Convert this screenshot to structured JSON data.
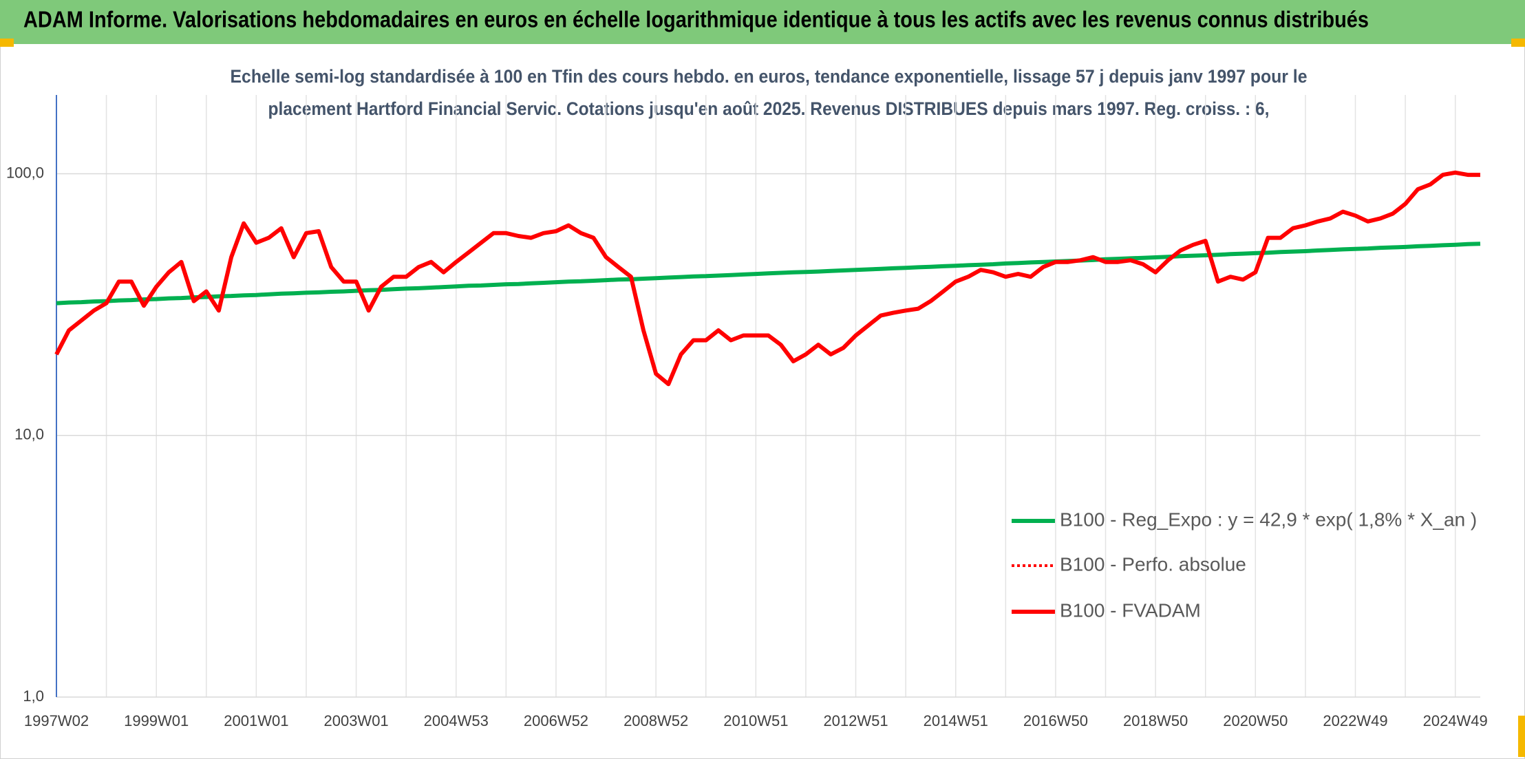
{
  "header": {
    "title": "ADAM Informe. Valorisations hebdomadaires en euros en échelle logarithmique identique à tous les actifs avec les revenus connus distribués"
  },
  "chart_data": {
    "type": "line",
    "title_lines": [
      "Echelle semi-log standardisée à 100 en Tfin des cours hebdo. en euros, tendance exponentielle, lissage 57 j depuis janv 1997 pour le",
      "placement Hartford Financial Servic. Cotations jusqu'en août 2025. Revenus DISTRIBUES depuis mars 1997. Reg. croiss. : 6,"
    ],
    "log_scale": true,
    "grid": true,
    "ylim": [
      1,
      200
    ],
    "yticks": [
      {
        "value": 1,
        "label": "1,0"
      },
      {
        "value": 10,
        "label": "10,0"
      },
      {
        "value": 100,
        "label": "100,0"
      }
    ],
    "categories": [
      "1997W02",
      null,
      null,
      null,
      null,
      null,
      null,
      null,
      "1999W01",
      null,
      null,
      null,
      null,
      null,
      null,
      null,
      "2001W01",
      null,
      null,
      null,
      null,
      null,
      null,
      null,
      "2003W01",
      null,
      null,
      null,
      null,
      null,
      null,
      null,
      "2004W53",
      null,
      null,
      null,
      null,
      null,
      null,
      null,
      "2006W52",
      null,
      null,
      null,
      null,
      null,
      null,
      null,
      "2008W52",
      null,
      null,
      null,
      null,
      null,
      null,
      null,
      "2010W51",
      null,
      null,
      null,
      null,
      null,
      null,
      null,
      "2012W51",
      null,
      null,
      null,
      null,
      null,
      null,
      null,
      "2014W51",
      null,
      null,
      null,
      null,
      null,
      null,
      null,
      "2016W50",
      null,
      null,
      null,
      null,
      null,
      null,
      null,
      "2018W50",
      null,
      null,
      null,
      null,
      null,
      null,
      null,
      "2020W50",
      null,
      null,
      null,
      null,
      null,
      null,
      null,
      "2022W49",
      null,
      null,
      null,
      null,
      null,
      null,
      null,
      "2024W49",
      null,
      null
    ],
    "series": [
      {
        "name": "B100 - Reg_Expo : y = 42,9 * exp( 1,8% *  X_an )",
        "color": "#00b050",
        "dash": false,
        "values": [
          32.0,
          32.2,
          32.3,
          32.5,
          32.6,
          32.8,
          32.9,
          33.1,
          33.2,
          33.4,
          33.5,
          33.7,
          33.8,
          34.0,
          34.1,
          34.3,
          34.4,
          34.6,
          34.8,
          34.9,
          35.1,
          35.2,
          35.4,
          35.5,
          35.7,
          35.9,
          36.0,
          36.2,
          36.4,
          36.5,
          36.7,
          36.9,
          37.1,
          37.3,
          37.4,
          37.6,
          37.8,
          37.9,
          38.1,
          38.3,
          38.5,
          38.7,
          38.8,
          39.0,
          39.2,
          39.4,
          39.5,
          39.7,
          39.9,
          40.1,
          40.3,
          40.5,
          40.6,
          40.8,
          41.0,
          41.2,
          41.4,
          41.6,
          41.8,
          42.0,
          42.1,
          42.3,
          42.5,
          42.7,
          42.9,
          43.1,
          43.3,
          43.5,
          43.7,
          43.9,
          44.1,
          44.3,
          44.5,
          44.7,
          44.9,
          45.1,
          45.4,
          45.6,
          45.8,
          46.0,
          46.2,
          46.4,
          46.6,
          46.8,
          47.1,
          47.3,
          47.5,
          47.7,
          47.9,
          48.1,
          48.4,
          48.6,
          48.8,
          49.0,
          49.3,
          49.5,
          49.7,
          49.9,
          50.2,
          50.4,
          50.6,
          50.9,
          51.1,
          51.4,
          51.6,
          51.8,
          52.1,
          52.3,
          52.5,
          52.8,
          53.0,
          53.3,
          53.5,
          53.8,
          54.0
        ]
      },
      {
        "name": "B100 - Perfo. absolue",
        "color": "#ff0000",
        "dash": true,
        "values": [
          20.4,
          25.2,
          27.5,
          30,
          32,
          38.7,
          38.7,
          31.3,
          37,
          42,
          46,
          32.6,
          35.5,
          30,
          48,
          64.6,
          54.5,
          56.9,
          61.9,
          48,
          59.3,
          60.3,
          44,
          38.7,
          38.7,
          30,
          37,
          40.4,
          40.4,
          44,
          46,
          42,
          46,
          50,
          54.5,
          59.3,
          59.3,
          57.8,
          56.9,
          59.3,
          60.3,
          63.5,
          59.3,
          56.9,
          48,
          44,
          40.4,
          25.2,
          17.2,
          15.7,
          20.4,
          23.1,
          23.1,
          25.2,
          23.1,
          24.1,
          24.1,
          24.1,
          22.2,
          19.2,
          20.4,
          22.2,
          20.4,
          21.6,
          24.1,
          26.3,
          28.7,
          29.4,
          30,
          30.5,
          32.6,
          35.5,
          38.7,
          40.4,
          42.9,
          42,
          40.4,
          41.4,
          40.4,
          44,
          46,
          46,
          46.7,
          48,
          46,
          46,
          46.7,
          45.1,
          42,
          46.7,
          50.9,
          53.5,
          55.4,
          38.7,
          40.4,
          39.4,
          42,
          56.9,
          56.9,
          61.9,
          63.5,
          65.7,
          67.5,
          71.6,
          69.2,
          65.7,
          67.5,
          70.4,
          76.7,
          87.2,
          91,
          99,
          101,
          99,
          99
        ]
      },
      {
        "name": "B100 - FVADAM",
        "color": "#ff0000",
        "dash": false,
        "values": [
          20.4,
          25.2,
          27.5,
          30,
          32,
          38.7,
          38.7,
          31.3,
          37,
          42,
          46,
          32.6,
          35.5,
          30,
          48,
          64.6,
          54.5,
          56.9,
          61.9,
          48,
          59.3,
          60.3,
          44,
          38.7,
          38.7,
          30,
          37,
          40.4,
          40.4,
          44,
          46,
          42,
          46,
          50,
          54.5,
          59.3,
          59.3,
          57.8,
          56.9,
          59.3,
          60.3,
          63.5,
          59.3,
          56.9,
          48,
          44,
          40.4,
          25.2,
          17.2,
          15.7,
          20.4,
          23.1,
          23.1,
          25.2,
          23.1,
          24.1,
          24.1,
          24.1,
          22.2,
          19.2,
          20.4,
          22.2,
          20.4,
          21.6,
          24.1,
          26.3,
          28.7,
          29.4,
          30,
          30.5,
          32.6,
          35.5,
          38.7,
          40.4,
          42.9,
          42,
          40.4,
          41.4,
          40.4,
          44,
          46,
          46,
          46.7,
          48,
          46,
          46,
          46.7,
          45.1,
          42,
          46.7,
          50.9,
          53.5,
          55.4,
          38.7,
          40.4,
          39.4,
          42,
          56.9,
          56.9,
          61.9,
          63.5,
          65.7,
          67.5,
          71.6,
          69.2,
          65.7,
          67.5,
          70.4,
          76.7,
          87.2,
          91,
          99,
          101,
          99,
          99
        ]
      }
    ]
  }
}
